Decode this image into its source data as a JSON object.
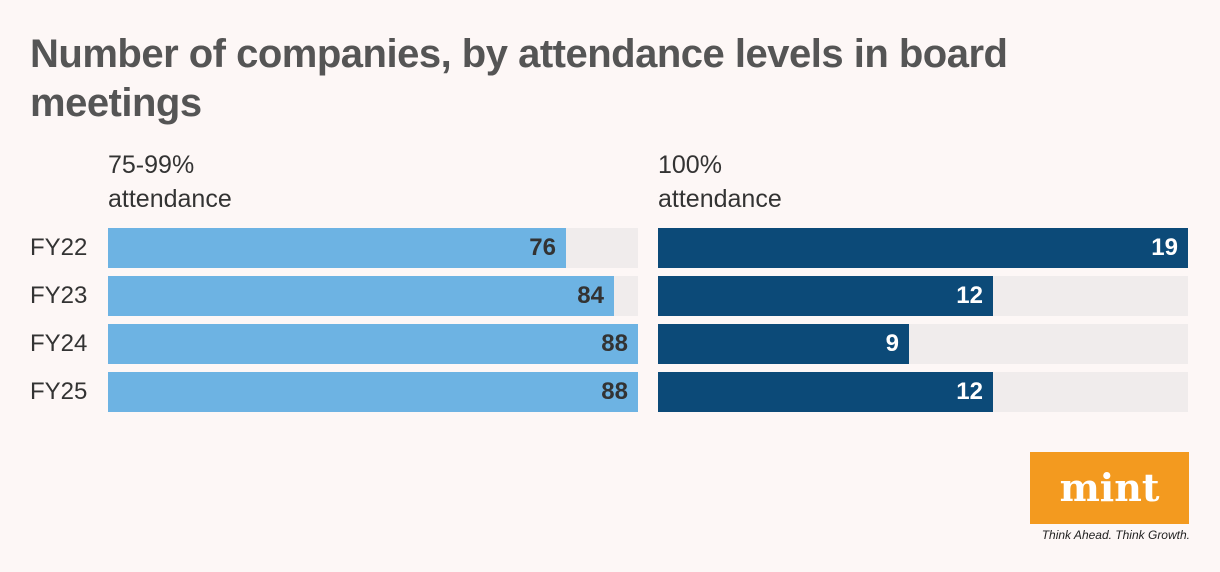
{
  "title": "Number of companies, by attendance levels in board meetings",
  "chart_data": {
    "type": "bar",
    "orientation": "horizontal",
    "categories": [
      "FY22",
      "FY23",
      "FY24",
      "FY25"
    ],
    "panels": [
      {
        "label": "75-99% attendance",
        "label_lines": [
          "75-99%",
          "attendance"
        ],
        "values": [
          76,
          84,
          88,
          88
        ],
        "max": 88,
        "color": "#6db3e3",
        "label_color": "#333333"
      },
      {
        "label": "100% attendance",
        "label_lines": [
          "100%",
          "attendance"
        ],
        "values": [
          19,
          12,
          9,
          12
        ],
        "max": 19,
        "color": "#0c4a78",
        "label_color": "#ffffff"
      }
    ],
    "track_color": "#f0ecec"
  },
  "brand": {
    "logo": "mint",
    "tagline": "Think Ahead. Think Growth.",
    "color": "#f39a1f"
  }
}
